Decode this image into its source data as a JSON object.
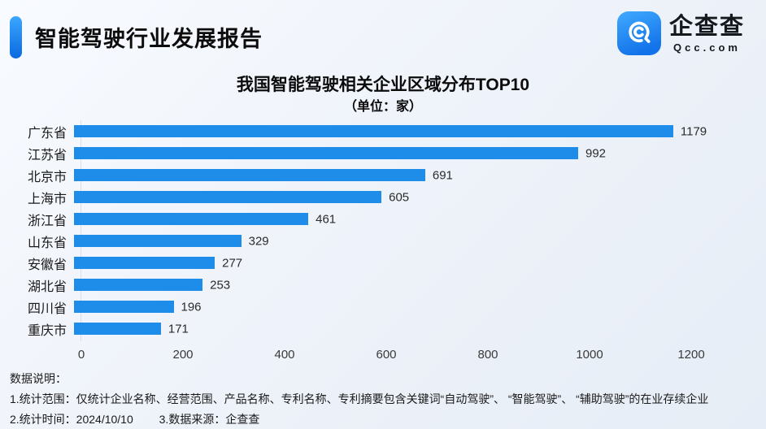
{
  "header": {
    "report_title": "智能驾驶行业发展报告"
  },
  "logo": {
    "brand_cn": "企查查",
    "brand_en": "Qcc.com"
  },
  "chart_data": {
    "type": "bar",
    "orientation": "horizontal",
    "title": "我国智能驾驶相关企业区域分布TOP10",
    "subtitle": "（单位：家）",
    "unit": "家",
    "categories": [
      "广东省",
      "江苏省",
      "北京市",
      "上海市",
      "浙江省",
      "山东省",
      "安徽省",
      "湖北省",
      "四川省",
      "重庆市"
    ],
    "values": [
      1179,
      992,
      691,
      605,
      461,
      329,
      277,
      253,
      196,
      171
    ],
    "xlim": [
      0,
      1200
    ],
    "x_ticks": [
      0,
      200,
      400,
      600,
      800,
      1000,
      1200
    ],
    "grid": false,
    "legend": null,
    "value_labels": "outside-end",
    "bar_color": "#1E8DE9"
  },
  "footer": {
    "heading": "数据说明：",
    "note_scope": "1.统计范围：仅统计企业名称、经营范围、产品名称、专利名称、专利摘要包含关键词“自动驾驶”、 “智能驾驶”、 “辅助驾驶”的在业存续企业",
    "note_time": "2.统计时间：2024/10/10",
    "note_source": "3.数据来源：企查查"
  },
  "colors": {
    "bar": "#1E8DE9",
    "accent_top": "#3BA7FF",
    "accent_bottom": "#0A69DF",
    "background_start": "#F8FBFF",
    "background_end": "#E6EDF6",
    "text": "#0C0C0C"
  }
}
